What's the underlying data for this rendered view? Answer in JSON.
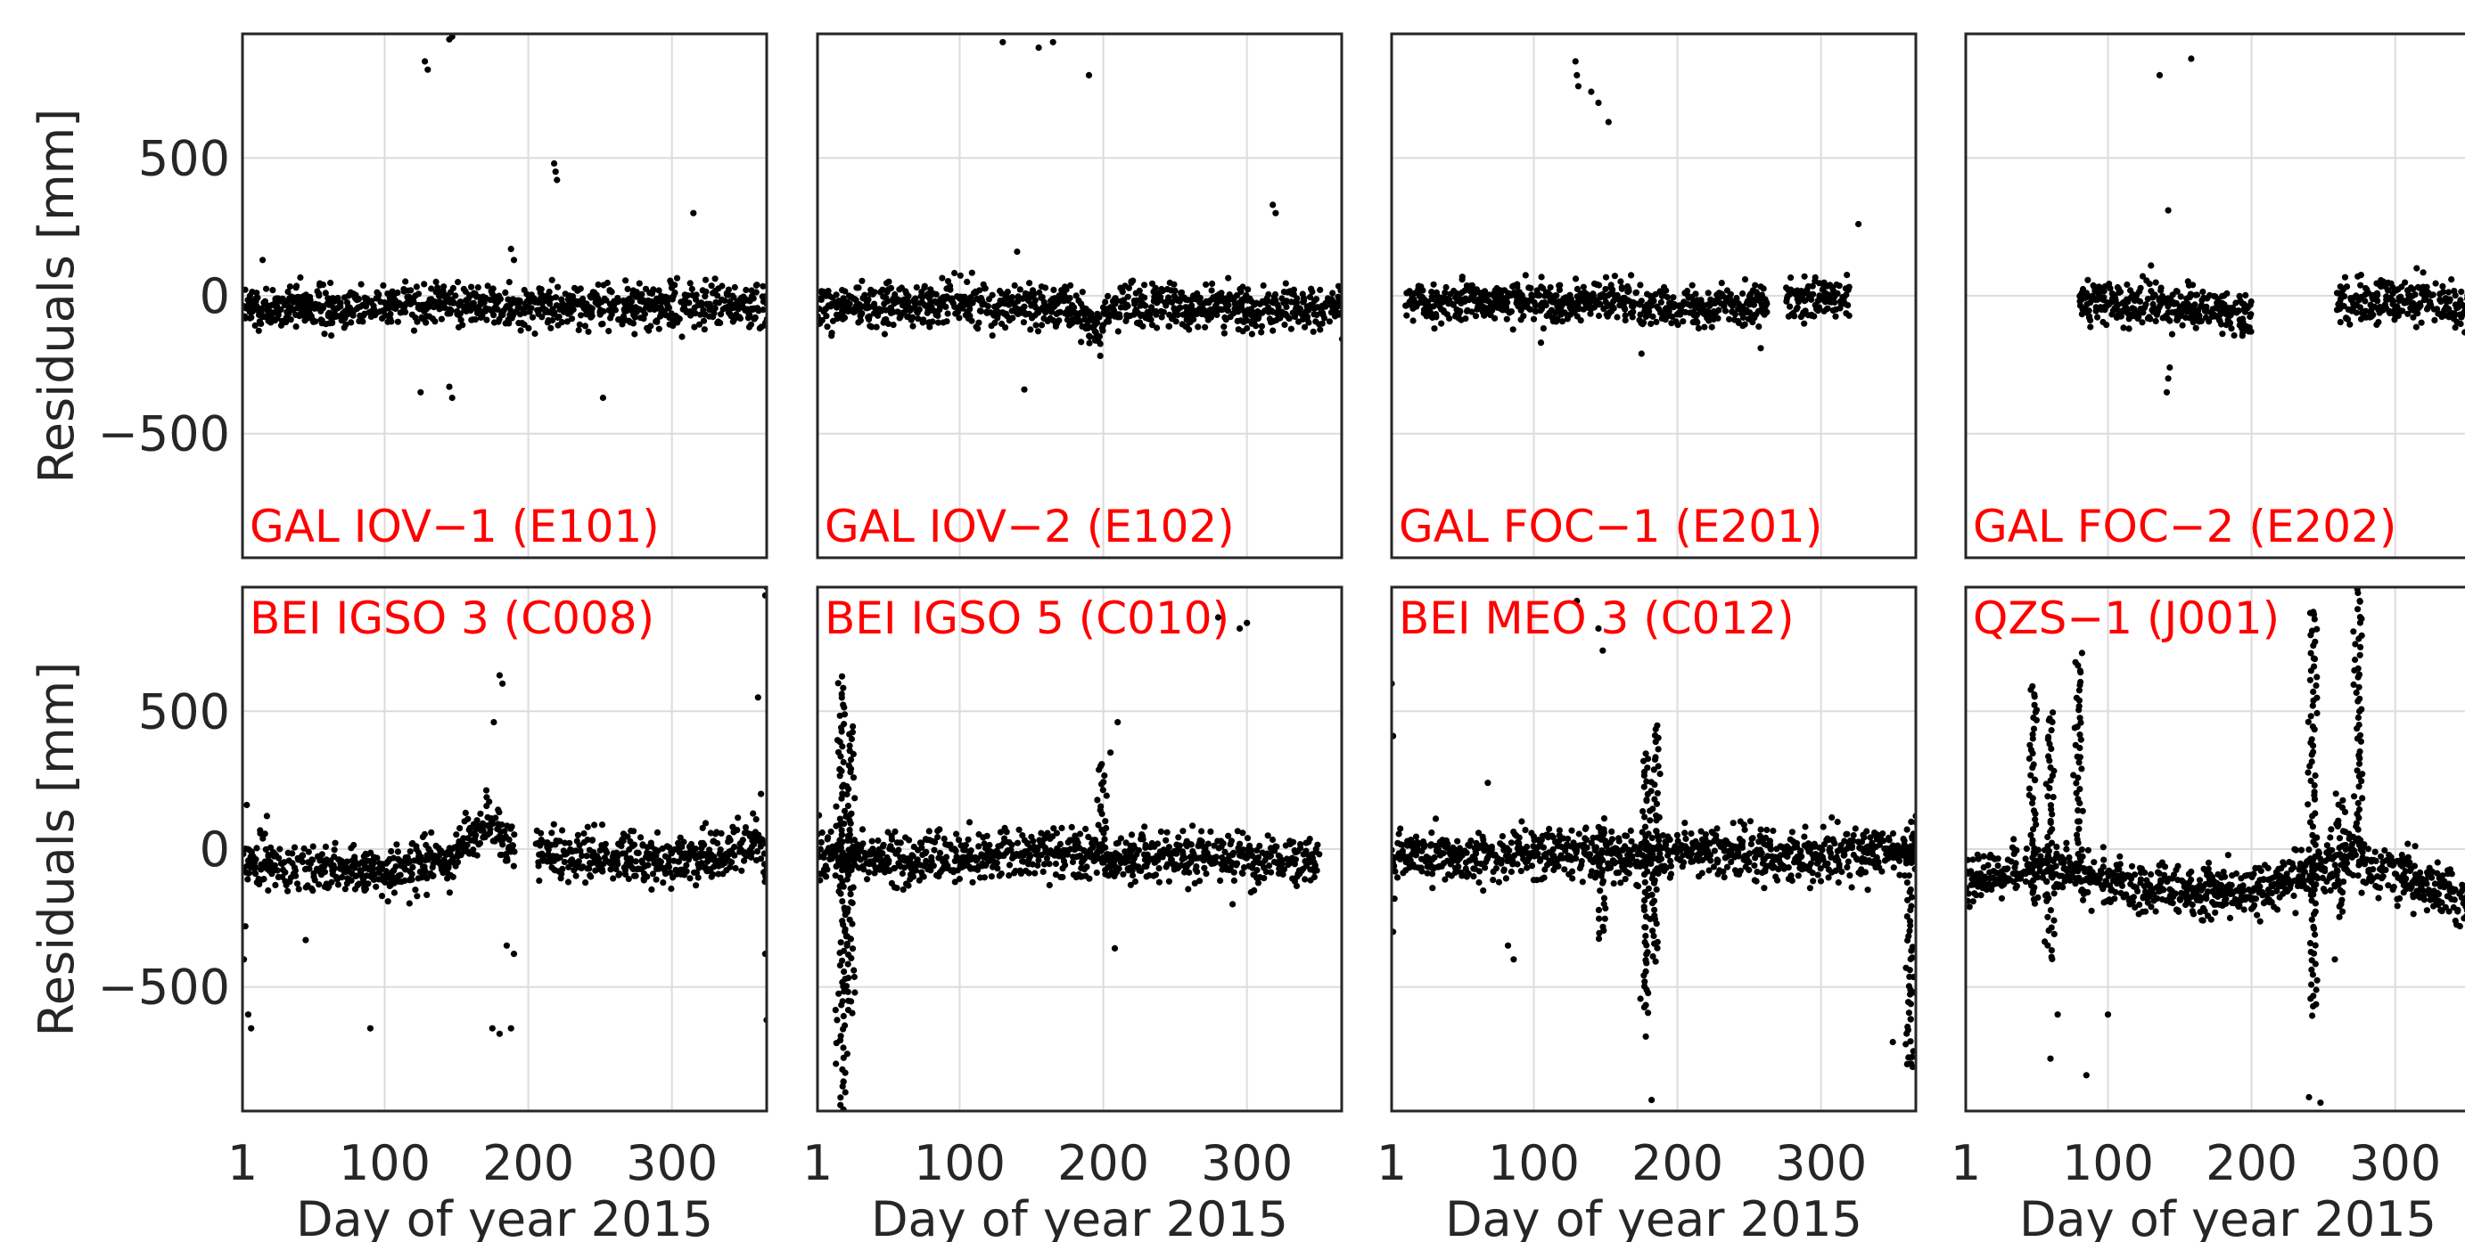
{
  "chart_data": {
    "type": "scatter",
    "figure_ylabel": "Residuals [mm]",
    "xlim": [
      1,
      366
    ],
    "ylim": [
      -950,
      950
    ],
    "xticks": [
      1,
      100,
      200,
      300
    ],
    "xtick_labels": [
      "1",
      "100",
      "200",
      "300"
    ],
    "yticks": [
      -500,
      0,
      500
    ],
    "ytick_labels": [
      "−500",
      "0",
      "500"
    ],
    "xlabel": "Day of year 2015",
    "grid": true,
    "marker_color": "#000000",
    "label_color": "#ff0000",
    "panels": [
      {
        "label": "GAL IOV-1 (E101)",
        "row": 0,
        "col": 0,
        "label_pos": "bottom-left",
        "baseline": [
          [
            1,
            -50
          ],
          [
            60,
            -40
          ],
          [
            120,
            -30
          ],
          [
            180,
            -35
          ],
          [
            240,
            -35
          ],
          [
            300,
            -35
          ],
          [
            366,
            -40
          ]
        ],
        "spread": 40,
        "gaps": [],
        "outliers": [
          [
            128,
            850
          ],
          [
            130,
            820
          ],
          [
            145,
            930
          ],
          [
            147,
            940
          ],
          [
            218,
            480
          ],
          [
            220,
            420
          ],
          [
            219,
            450
          ],
          [
            315,
            300
          ],
          [
            125,
            -350
          ],
          [
            145,
            -330
          ],
          [
            147,
            -370
          ],
          [
            252,
            -370
          ],
          [
            188,
            170
          ],
          [
            190,
            130
          ],
          [
            15,
            130
          ]
        ]
      },
      {
        "label": "GAL IOV-2 (E102)",
        "row": 0,
        "col": 1,
        "label_pos": "bottom-left",
        "baseline": [
          [
            1,
            -40
          ],
          [
            100,
            -30
          ],
          [
            170,
            -35
          ],
          [
            195,
            -110
          ],
          [
            210,
            -40
          ],
          [
            300,
            -45
          ],
          [
            366,
            -40
          ]
        ],
        "spread": 40,
        "gaps": [],
        "outliers": [
          [
            130,
            920
          ],
          [
            155,
            900
          ],
          [
            165,
            920
          ],
          [
            190,
            800
          ],
          [
            318,
            330
          ],
          [
            320,
            300
          ],
          [
            140,
            160
          ],
          [
            145,
            -340
          ]
        ]
      },
      {
        "label": "GAL FOC-1 (E201)",
        "row": 0,
        "col": 2,
        "label_pos": "bottom-left",
        "baseline": [
          [
            10,
            -30
          ],
          [
            80,
            -20
          ],
          [
            150,
            -10
          ],
          [
            180,
            -40
          ],
          [
            250,
            -30
          ],
          [
            300,
            -20
          ],
          [
            320,
            -10
          ]
        ],
        "spread": 35,
        "gaps": [
          [
            262,
            275
          ]
        ],
        "outliers": [
          [
            129,
            850
          ],
          [
            130,
            800
          ],
          [
            131,
            760
          ],
          [
            140,
            740
          ],
          [
            145,
            700
          ],
          [
            152,
            630
          ],
          [
            326,
            260
          ],
          [
            258,
            -190
          ],
          [
            105,
            -170
          ],
          [
            175,
            -210
          ]
        ]
      },
      {
        "label": "GAL FOC-2 (E202)",
        "row": 0,
        "col": 3,
        "label_pos": "bottom-left",
        "baseline": [
          [
            80,
            -20
          ],
          [
            140,
            -30
          ],
          [
            180,
            -50
          ],
          [
            199,
            -70
          ],
          [
            260,
            -30
          ],
          [
            330,
            -20
          ],
          [
            366,
            -40
          ]
        ],
        "spread": 40,
        "gaps": [
          [
            -20,
            79
          ],
          [
            200,
            259
          ]
        ],
        "outliers": [
          [
            136,
            800
          ],
          [
            158,
            860
          ],
          [
            142,
            310
          ],
          [
            130,
            110
          ],
          [
            143,
            -260
          ],
          [
            142,
            -300
          ],
          [
            141,
            -350
          ],
          [
            315,
            100
          ]
        ]
      },
      {
        "label": "BEI IGSO 3 (C008)",
        "row": 1,
        "col": 0,
        "label_pos": "top-left",
        "baseline": [
          [
            1,
            -50
          ],
          [
            50,
            -60
          ],
          [
            100,
            -90
          ],
          [
            150,
            -20
          ],
          [
            170,
            100
          ],
          [
            190,
            -20
          ],
          [
            240,
            -30
          ],
          [
            300,
            -40
          ],
          [
            345,
            0
          ],
          [
            360,
            30
          ],
          [
            366,
            -60
          ]
        ],
        "spread": 45,
        "gaps": [
          [
            190,
            205
          ]
        ],
        "outliers": [
          [
            176,
            460
          ],
          [
            180,
            630
          ],
          [
            182,
            600
          ],
          [
            360,
            550
          ],
          [
            362,
            200
          ],
          [
            365,
            920
          ],
          [
            366,
            950
          ],
          [
            5,
            -600
          ],
          [
            7,
            -650
          ],
          [
            3,
            -280
          ],
          [
            2,
            -400
          ],
          [
            90,
            -650
          ],
          [
            175,
            -650
          ],
          [
            180,
            -670
          ],
          [
            188,
            -650
          ],
          [
            185,
            -350
          ],
          [
            190,
            -380
          ],
          [
            45,
            -330
          ],
          [
            365,
            -380
          ],
          [
            366,
            -620
          ],
          [
            4,
            160
          ],
          [
            18,
            120
          ]
        ]
      },
      {
        "label": "BEI IGSO 5 (C010)",
        "row": 1,
        "col": 1,
        "label_pos": "top-left",
        "baseline": [
          [
            1,
            -10
          ],
          [
            20,
            -20
          ],
          [
            60,
            -50
          ],
          [
            120,
            -20
          ],
          [
            180,
            -10
          ],
          [
            210,
            -30
          ],
          [
            260,
            -20
          ],
          [
            300,
            -30
          ],
          [
            350,
            -40
          ]
        ],
        "spread": 45,
        "gaps": [],
        "outliers": [
          [
            280,
            840
          ],
          [
            295,
            800
          ],
          [
            300,
            820
          ],
          [
            198,
            300
          ],
          [
            205,
            350
          ],
          [
            210,
            460
          ],
          [
            208,
            -360
          ],
          [
            290,
            -200
          ],
          [
            305,
            -150
          ]
        ],
        "vertical_streaks": [
          {
            "x": 18,
            "ymin": -940,
            "ymax": 620
          },
          {
            "x": 24,
            "ymin": -600,
            "ymax": 450
          },
          {
            "x": 200,
            "ymin": 0,
            "ymax": 300
          }
        ]
      },
      {
        "label": "BEI MEO 3 (C012)",
        "row": 1,
        "col": 2,
        "label_pos": "top-left",
        "baseline": [
          [
            1,
            -20
          ],
          [
            60,
            -30
          ],
          [
            120,
            -10
          ],
          [
            170,
            -30
          ],
          [
            200,
            -10
          ],
          [
            260,
            -20
          ],
          [
            320,
            -20
          ],
          [
            366,
            -10
          ]
        ],
        "spread": 45,
        "gaps": [],
        "outliers": [
          [
            68,
            240
          ],
          [
            82,
            -350
          ],
          [
            86,
            -400
          ],
          [
            145,
            800
          ],
          [
            148,
            720
          ],
          [
            130,
            900
          ],
          [
            178,
            -680
          ],
          [
            182,
            -910
          ],
          [
            350,
            -700
          ],
          [
            360,
            -780
          ],
          [
            365,
            -520
          ],
          [
            366,
            120
          ],
          [
            1,
            600
          ],
          [
            2,
            410
          ],
          [
            3,
            -180
          ],
          [
            2,
            -300
          ]
        ],
        "vertical_streaks": [
          {
            "x": 178,
            "ymin": -600,
            "ymax": 350
          },
          {
            "x": 185,
            "ymin": -400,
            "ymax": 450
          },
          {
            "x": 148,
            "ymin": -330,
            "ymax": 80
          },
          {
            "x": 362,
            "ymin": -800,
            "ymax": 100
          }
        ]
      },
      {
        "label": "QZS-1 (J001)",
        "row": 1,
        "col": 3,
        "label_pos": "top-left",
        "baseline": [
          [
            1,
            -120
          ],
          [
            30,
            -80
          ],
          [
            60,
            -60
          ],
          [
            100,
            -130
          ],
          [
            150,
            -150
          ],
          [
            200,
            -160
          ],
          [
            240,
            -80
          ],
          [
            270,
            -20
          ],
          [
            300,
            -100
          ],
          [
            366,
            -200
          ]
        ],
        "spread": 45,
        "gaps": [],
        "outliers": [
          [
            60,
            -760
          ],
          [
            65,
            -600
          ],
          [
            85,
            -820
          ],
          [
            100,
            -600
          ],
          [
            240,
            -900
          ],
          [
            248,
            -920
          ],
          [
            258,
            -400
          ],
          [
            243,
            860
          ],
          [
            255,
            -150
          ]
        ],
        "vertical_streaks": [
          {
            "x": 60,
            "ymin": -400,
            "ymax": 500
          },
          {
            "x": 80,
            "ymin": -50,
            "ymax": 700
          },
          {
            "x": 48,
            "ymin": -200,
            "ymax": 600
          },
          {
            "x": 243,
            "ymin": -600,
            "ymax": 860
          },
          {
            "x": 275,
            "ymin": -50,
            "ymax": 940
          },
          {
            "x": 262,
            "ymin": -250,
            "ymax": 200
          }
        ]
      }
    ]
  }
}
